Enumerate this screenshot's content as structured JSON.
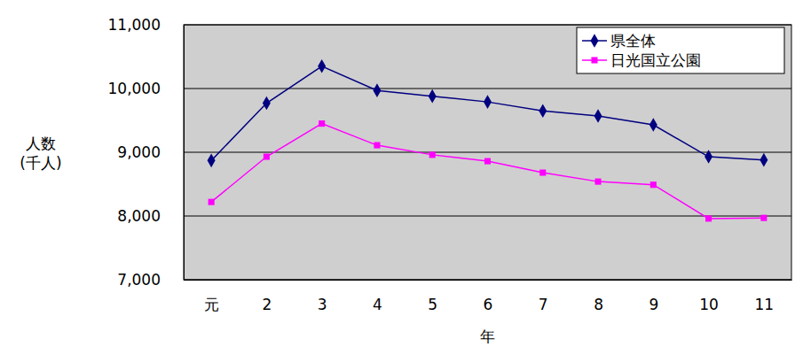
{
  "chart_data": {
    "type": "line",
    "categories": [
      "元",
      "2",
      "3",
      "4",
      "5",
      "6",
      "7",
      "8",
      "9",
      "10",
      "11"
    ],
    "series": [
      {
        "name": "県全体",
        "color": "#000080",
        "marker": "diamond",
        "values": [
          8870,
          9770,
          10350,
          9970,
          9880,
          9790,
          9650,
          9570,
          9430,
          8930,
          8880
        ]
      },
      {
        "name": "日光国立公園",
        "color": "#ff00ff",
        "marker": "square",
        "values": [
          8220,
          8930,
          9450,
          9110,
          8960,
          8860,
          8680,
          8540,
          8490,
          7960,
          7970
        ]
      }
    ],
    "x_label": "年",
    "y_label": "人数\n(千人)",
    "ylim": [
      7000,
      11000
    ],
    "yticks": [
      {
        "value": 7000,
        "label": "7,000"
      },
      {
        "value": 8000,
        "label": "8,000"
      },
      {
        "value": 9000,
        "label": "9,000"
      },
      {
        "value": 10000,
        "label": "10,000"
      },
      {
        "value": 11000,
        "label": "11,000"
      }
    ],
    "grid": true,
    "legend": "upper right"
  }
}
